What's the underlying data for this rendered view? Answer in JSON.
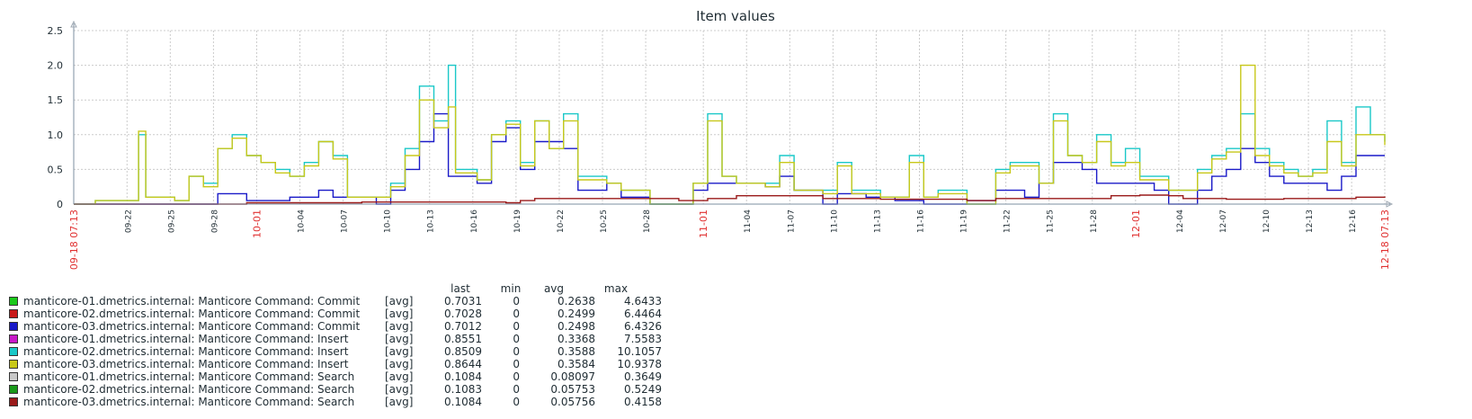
{
  "chart_data": {
    "type": "line",
    "title": "Item values",
    "xlabel": "",
    "ylabel": "",
    "ylim": [
      0,
      2.5
    ],
    "y_ticks": [
      0,
      0.5,
      1.0,
      1.5,
      2.0,
      2.5
    ],
    "y_tick_labels": [
      "0",
      "0.5",
      "1.0",
      "1.5",
      "2.0",
      "2.5"
    ],
    "x_range_days": [
      0,
      91
    ],
    "x_ticks": [
      {
        "label": "09-18 07:13",
        "day": 0,
        "highlight": true
      },
      {
        "label": "09-22",
        "day": 3.7,
        "highlight": false
      },
      {
        "label": "09-25",
        "day": 6.7,
        "highlight": false
      },
      {
        "label": "09-28",
        "day": 9.7,
        "highlight": false
      },
      {
        "label": "10-01",
        "day": 12.7,
        "highlight": true
      },
      {
        "label": "10-04",
        "day": 15.7,
        "highlight": false
      },
      {
        "label": "10-07",
        "day": 18.7,
        "highlight": false
      },
      {
        "label": "10-10",
        "day": 21.7,
        "highlight": false
      },
      {
        "label": "10-13",
        "day": 24.7,
        "highlight": false
      },
      {
        "label": "10-16",
        "day": 27.7,
        "highlight": false
      },
      {
        "label": "10-19",
        "day": 30.7,
        "highlight": false
      },
      {
        "label": "10-22",
        "day": 33.7,
        "highlight": false
      },
      {
        "label": "10-25",
        "day": 36.7,
        "highlight": false
      },
      {
        "label": "10-28",
        "day": 39.7,
        "highlight": false
      },
      {
        "label": "11-01",
        "day": 43.7,
        "highlight": true
      },
      {
        "label": "11-04",
        "day": 46.7,
        "highlight": false
      },
      {
        "label": "11-07",
        "day": 49.7,
        "highlight": false
      },
      {
        "label": "11-10",
        "day": 52.7,
        "highlight": false
      },
      {
        "label": "11-13",
        "day": 55.7,
        "highlight": false
      },
      {
        "label": "11-16",
        "day": 58.7,
        "highlight": false
      },
      {
        "label": "11-19",
        "day": 61.7,
        "highlight": false
      },
      {
        "label": "11-22",
        "day": 64.7,
        "highlight": false
      },
      {
        "label": "11-25",
        "day": 67.7,
        "highlight": false
      },
      {
        "label": "11-28",
        "day": 70.7,
        "highlight": false
      },
      {
        "label": "12-01",
        "day": 73.7,
        "highlight": true
      },
      {
        "label": "12-04",
        "day": 76.7,
        "highlight": false
      },
      {
        "label": "12-07",
        "day": 79.7,
        "highlight": false
      },
      {
        "label": "12-10",
        "day": 82.7,
        "highlight": false
      },
      {
        "label": "12-13",
        "day": 85.7,
        "highlight": false
      },
      {
        "label": "12-16",
        "day": 88.7,
        "highlight": false
      },
      {
        "label": "12-18 07:13",
        "day": 91,
        "highlight": true
      }
    ],
    "highlight_color": "#e03030",
    "grid": true,
    "series": [
      {
        "name": "manticore-01.dmetrics.internal: Manticore Command: Commit",
        "color": "#1ac81a",
        "func": "[avg]",
        "last": "0.7031",
        "min": "0",
        "avg": "0.2638",
        "max": "4.6433"
      },
      {
        "name": "manticore-02.dmetrics.internal: Manticore Command: Commit",
        "color": "#c81a1a",
        "func": "[avg]",
        "last": "0.7028",
        "min": "0",
        "avg": "0.2499",
        "max": "6.4464"
      },
      {
        "name": "manticore-03.dmetrics.internal: Manticore Command: Commit",
        "color": "#1a1ac8",
        "func": "[avg]",
        "last": "0.7012",
        "min": "0",
        "avg": "0.2498",
        "max": "6.4326",
        "points": [
          [
            0,
            0
          ],
          [
            9,
            0
          ],
          [
            10,
            0.15
          ],
          [
            12,
            0.05
          ],
          [
            15,
            0.1
          ],
          [
            17,
            0.2
          ],
          [
            18,
            0.1
          ],
          [
            21,
            0
          ],
          [
            22,
            0.2
          ],
          [
            23,
            0.5
          ],
          [
            24,
            0.9
          ],
          [
            25,
            1.3
          ],
          [
            26,
            0.4
          ],
          [
            28,
            0.3
          ],
          [
            29,
            0.9
          ],
          [
            30,
            1.1
          ],
          [
            31,
            0.5
          ],
          [
            32,
            0.9
          ],
          [
            34,
            0.8
          ],
          [
            35,
            0.2
          ],
          [
            37,
            0.3
          ],
          [
            38,
            0.1
          ],
          [
            40,
            0
          ],
          [
            42,
            0
          ],
          [
            43,
            0.2
          ],
          [
            44,
            0.3
          ],
          [
            46,
            0.3
          ],
          [
            48,
            0.25
          ],
          [
            49,
            0.4
          ],
          [
            50,
            0.2
          ],
          [
            52,
            0
          ],
          [
            53,
            0.15
          ],
          [
            55,
            0.1
          ],
          [
            57,
            0.05
          ],
          [
            59,
            0
          ],
          [
            62,
            0.05
          ],
          [
            64,
            0.2
          ],
          [
            66,
            0.1
          ],
          [
            67,
            0.3
          ],
          [
            68,
            0.6
          ],
          [
            70,
            0.5
          ],
          [
            71,
            0.3
          ],
          [
            73,
            0.3
          ],
          [
            75,
            0.2
          ],
          [
            76,
            0
          ],
          [
            78,
            0.2
          ],
          [
            79,
            0.4
          ],
          [
            80,
            0.5
          ],
          [
            81,
            0.8
          ],
          [
            82,
            0.6
          ],
          [
            83,
            0.4
          ],
          [
            84,
            0.3
          ],
          [
            86,
            0.3
          ],
          [
            87,
            0.2
          ],
          [
            88,
            0.4
          ],
          [
            89,
            0.7
          ],
          [
            91,
            0.7
          ]
        ]
      },
      {
        "name": "manticore-01.dmetrics.internal: Manticore Command: Insert",
        "color": "#c81ac8",
        "func": "[avg]",
        "last": "0.8551",
        "min": "0",
        "avg": "0.3368",
        "max": "7.5583"
      },
      {
        "name": "manticore-02.dmetrics.internal: Manticore Command: Insert",
        "color": "#1ac8c8",
        "func": "[avg]",
        "last": "0.8509",
        "min": "0",
        "avg": "0.3588",
        "max": "10.1057",
        "points": [
          [
            0,
            0
          ],
          [
            1.5,
            0.05
          ],
          [
            3.5,
            0.05
          ],
          [
            4.5,
            1.0
          ],
          [
            5,
            0.1
          ],
          [
            7,
            0.05
          ],
          [
            8,
            0.4
          ],
          [
            9,
            0.3
          ],
          [
            10,
            0.8
          ],
          [
            11,
            1.0
          ],
          [
            12,
            0.7
          ],
          [
            13,
            0.6
          ],
          [
            14,
            0.5
          ],
          [
            15,
            0.4
          ],
          [
            16,
            0.6
          ],
          [
            17,
            0.9
          ],
          [
            18,
            0.7
          ],
          [
            19,
            0.1
          ],
          [
            21,
            0.1
          ],
          [
            22,
            0.3
          ],
          [
            23,
            0.8
          ],
          [
            24,
            1.7
          ],
          [
            25,
            1.2
          ],
          [
            26,
            2.0
          ],
          [
            26.5,
            0.5
          ],
          [
            28,
            0.35
          ],
          [
            29,
            1.0
          ],
          [
            30,
            1.2
          ],
          [
            31,
            0.6
          ],
          [
            32,
            1.2
          ],
          [
            33,
            0.8
          ],
          [
            34,
            1.3
          ],
          [
            35,
            0.4
          ],
          [
            37,
            0.3
          ],
          [
            38,
            0.2
          ],
          [
            40,
            0
          ],
          [
            42,
            0
          ],
          [
            43,
            0.3
          ],
          [
            44,
            1.3
          ],
          [
            45,
            0.4
          ],
          [
            46,
            0.3
          ],
          [
            48,
            0.3
          ],
          [
            49,
            0.7
          ],
          [
            50,
            0.2
          ],
          [
            52,
            0.2
          ],
          [
            53,
            0.6
          ],
          [
            54,
            0.2
          ],
          [
            56,
            0.1
          ],
          [
            58,
            0.7
          ],
          [
            59,
            0.1
          ],
          [
            60,
            0.2
          ],
          [
            62,
            0
          ],
          [
            64,
            0.5
          ],
          [
            65,
            0.6
          ],
          [
            67,
            0.3
          ],
          [
            68,
            1.3
          ],
          [
            69,
            0.7
          ],
          [
            70,
            0.6
          ],
          [
            71,
            1.0
          ],
          [
            72,
            0.6
          ],
          [
            73,
            0.8
          ],
          [
            74,
            0.4
          ],
          [
            76,
            0.2
          ],
          [
            78,
            0.5
          ],
          [
            79,
            0.7
          ],
          [
            80,
            0.8
          ],
          [
            81,
            1.3
          ],
          [
            82,
            0.8
          ],
          [
            83,
            0.6
          ],
          [
            84,
            0.5
          ],
          [
            85,
            0.4
          ],
          [
            86,
            0.5
          ],
          [
            87,
            1.2
          ],
          [
            88,
            0.6
          ],
          [
            89,
            1.4
          ],
          [
            90,
            1.0
          ],
          [
            91,
            0.9
          ]
        ]
      },
      {
        "name": "manticore-03.dmetrics.internal: Manticore Command: Insert",
        "color": "#c8c81a",
        "func": "[avg]",
        "last": "0.8644",
        "min": "0",
        "avg": "0.3584",
        "max": "10.9378",
        "points": [
          [
            0,
            0
          ],
          [
            1.5,
            0.05
          ],
          [
            3.5,
            0.05
          ],
          [
            4.5,
            1.05
          ],
          [
            5,
            0.1
          ],
          [
            7,
            0.05
          ],
          [
            8,
            0.4
          ],
          [
            9,
            0.25
          ],
          [
            10,
            0.8
          ],
          [
            11,
            0.95
          ],
          [
            12,
            0.7
          ],
          [
            13,
            0.6
          ],
          [
            14,
            0.45
          ],
          [
            15,
            0.4
          ],
          [
            16,
            0.55
          ],
          [
            17,
            0.9
          ],
          [
            18,
            0.65
          ],
          [
            19,
            0.1
          ],
          [
            21,
            0.1
          ],
          [
            22,
            0.25
          ],
          [
            23,
            0.7
          ],
          [
            24,
            1.5
          ],
          [
            25,
            1.1
          ],
          [
            26,
            1.4
          ],
          [
            26.5,
            0.45
          ],
          [
            28,
            0.35
          ],
          [
            29,
            1.0
          ],
          [
            30,
            1.15
          ],
          [
            31,
            0.55
          ],
          [
            32,
            1.2
          ],
          [
            33,
            0.8
          ],
          [
            34,
            1.2
          ],
          [
            35,
            0.35
          ],
          [
            37,
            0.3
          ],
          [
            38,
            0.2
          ],
          [
            40,
            0
          ],
          [
            42,
            0
          ],
          [
            43,
            0.3
          ],
          [
            44,
            1.2
          ],
          [
            45,
            0.4
          ],
          [
            46,
            0.3
          ],
          [
            48,
            0.25
          ],
          [
            49,
            0.6
          ],
          [
            50,
            0.2
          ],
          [
            52,
            0.15
          ],
          [
            53,
            0.55
          ],
          [
            54,
            0.15
          ],
          [
            56,
            0.1
          ],
          [
            58,
            0.6
          ],
          [
            59,
            0.1
          ],
          [
            60,
            0.15
          ],
          [
            62,
            0
          ],
          [
            64,
            0.45
          ],
          [
            65,
            0.55
          ],
          [
            67,
            0.3
          ],
          [
            68,
            1.2
          ],
          [
            69,
            0.7
          ],
          [
            70,
            0.6
          ],
          [
            71,
            0.9
          ],
          [
            72,
            0.55
          ],
          [
            73,
            0.6
          ],
          [
            74,
            0.35
          ],
          [
            76,
            0.2
          ],
          [
            78,
            0.45
          ],
          [
            79,
            0.65
          ],
          [
            80,
            0.75
          ],
          [
            81,
            2.0
          ],
          [
            82,
            0.7
          ],
          [
            83,
            0.55
          ],
          [
            84,
            0.45
          ],
          [
            85,
            0.4
          ],
          [
            86,
            0.45
          ],
          [
            87,
            0.9
          ],
          [
            88,
            0.55
          ],
          [
            89,
            1.0
          ],
          [
            90,
            1.0
          ],
          [
            91,
            0.85
          ]
        ]
      },
      {
        "name": "manticore-01.dmetrics.internal: Manticore Command: Search",
        "color": "#c8c8c8",
        "func": "[avg]",
        "last": "0.1084",
        "min": "0",
        "avg": "0.08097",
        "max": "0.3649"
      },
      {
        "name": "manticore-02.dmetrics.internal: Manticore Command: Search",
        "color": "#1a9a1a",
        "func": "[avg]",
        "last": "0.1083",
        "min": "0",
        "avg": "0.05753",
        "max": "0.5249"
      },
      {
        "name": "manticore-03.dmetrics.internal: Manticore Command: Search",
        "color": "#9a1a1a",
        "func": "[avg]",
        "last": "0.1084",
        "min": "0",
        "avg": "0.05756",
        "max": "0.4158",
        "points": [
          [
            0,
            0
          ],
          [
            12,
            0.02
          ],
          [
            20,
            0.03
          ],
          [
            30,
            0.02
          ],
          [
            31,
            0.05
          ],
          [
            32,
            0.08
          ],
          [
            38,
            0.08
          ],
          [
            42,
            0.05
          ],
          [
            44,
            0.08
          ],
          [
            46,
            0.12
          ],
          [
            50,
            0.12
          ],
          [
            52,
            0.08
          ],
          [
            56,
            0.07
          ],
          [
            62,
            0.05
          ],
          [
            64,
            0.08
          ],
          [
            70,
            0.08
          ],
          [
            72,
            0.12
          ],
          [
            74,
            0.13
          ],
          [
            76,
            0.12
          ],
          [
            77,
            0.08
          ],
          [
            80,
            0.07
          ],
          [
            84,
            0.08
          ],
          [
            88,
            0.08
          ],
          [
            89,
            0.1
          ],
          [
            91,
            0.11
          ]
        ]
      }
    ]
  },
  "legend": {
    "headers": {
      "last": "last",
      "min": "min",
      "avg": "avg",
      "max": "max"
    }
  }
}
